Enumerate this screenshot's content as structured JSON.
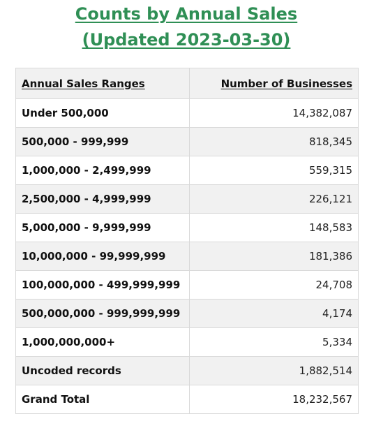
{
  "title": {
    "line1": "Counts by Annual Sales",
    "line2": "(Updated 2023-03-30)"
  },
  "colors": {
    "title": "#2f8f55",
    "header_bg": "#f1f1f1",
    "alt_row_bg": "#f1f1f1",
    "border": "#d9d9d9"
  },
  "table": {
    "headers": [
      "Annual Sales Ranges",
      "Number of Businesses"
    ],
    "rows": [
      {
        "range": "Under 500,000",
        "count": "14,382,087"
      },
      {
        "range": "500,000 - 999,999",
        "count": "818,345"
      },
      {
        "range": "1,000,000 - 2,499,999",
        "count": "559,315"
      },
      {
        "range": "2,500,000 - 4,999,999",
        "count": "226,121"
      },
      {
        "range": "5,000,000 - 9,999,999",
        "count": "148,583"
      },
      {
        "range": "10,000,000 - 99,999,999",
        "count": "181,386"
      },
      {
        "range": "100,000,000 - 499,999,999",
        "count": "24,708"
      },
      {
        "range": "500,000,000 - 999,999,999",
        "count": "4,174"
      },
      {
        "range": "1,000,000,000+",
        "count": "5,334"
      },
      {
        "range": "Uncoded records",
        "count": "1,882,514"
      },
      {
        "range": "Grand Total",
        "count": "18,232,567"
      }
    ]
  }
}
